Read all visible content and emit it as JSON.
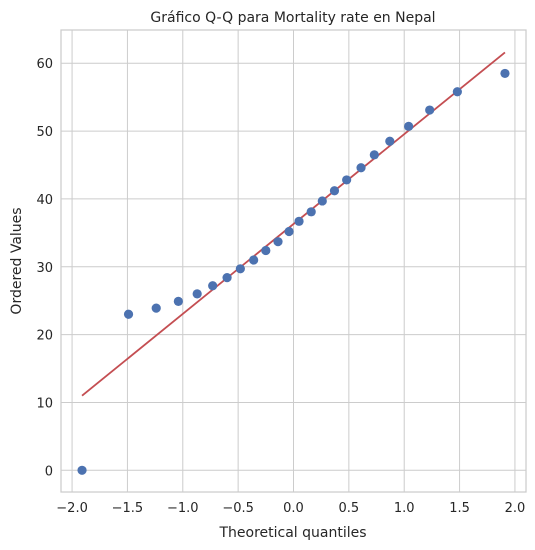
{
  "chart_data": {
    "type": "scatter",
    "title": "Gráfico Q-Q para Mortality rate en Nepal",
    "xlabel": "Theoretical quantiles",
    "ylabel": "Ordered Values",
    "xlim": [
      -2.1,
      2.1
    ],
    "ylim": [
      -3.2,
      64.9
    ],
    "xticks": [
      -2.0,
      -1.5,
      -1.0,
      -0.5,
      0.0,
      0.5,
      1.0,
      1.5,
      2.0
    ],
    "xtick_labels": [
      "−2.0",
      "−1.5",
      "−1.0",
      "−0.5",
      "0.0",
      "0.5",
      "1.0",
      "1.5",
      "2.0"
    ],
    "yticks": [
      0,
      10,
      20,
      30,
      40,
      50,
      60
    ],
    "ytick_labels": [
      "0",
      "10",
      "20",
      "30",
      "40",
      "50",
      "60"
    ],
    "grid": true,
    "series": [
      {
        "kind": "points",
        "color": "#4c72b0",
        "x": [
          -1.91,
          -1.49,
          -1.24,
          -1.04,
          -0.87,
          -0.73,
          -0.6,
          -0.48,
          -0.36,
          -0.25,
          -0.14,
          -0.04,
          0.05,
          0.16,
          0.26,
          0.37,
          0.48,
          0.61,
          0.73,
          0.87,
          1.04,
          1.23,
          1.48,
          1.91
        ],
        "y": [
          0.0,
          23.0,
          23.9,
          24.9,
          26.0,
          27.2,
          28.4,
          29.7,
          31.0,
          32.4,
          33.7,
          35.2,
          36.7,
          38.1,
          39.7,
          41.2,
          42.8,
          44.6,
          46.5,
          48.5,
          50.7,
          53.1,
          55.8,
          58.5
        ]
      },
      {
        "kind": "line",
        "color": "#c44e52",
        "x": [
          -1.91,
          1.91
        ],
        "y": [
          11.0,
          61.6
        ]
      }
    ]
  }
}
